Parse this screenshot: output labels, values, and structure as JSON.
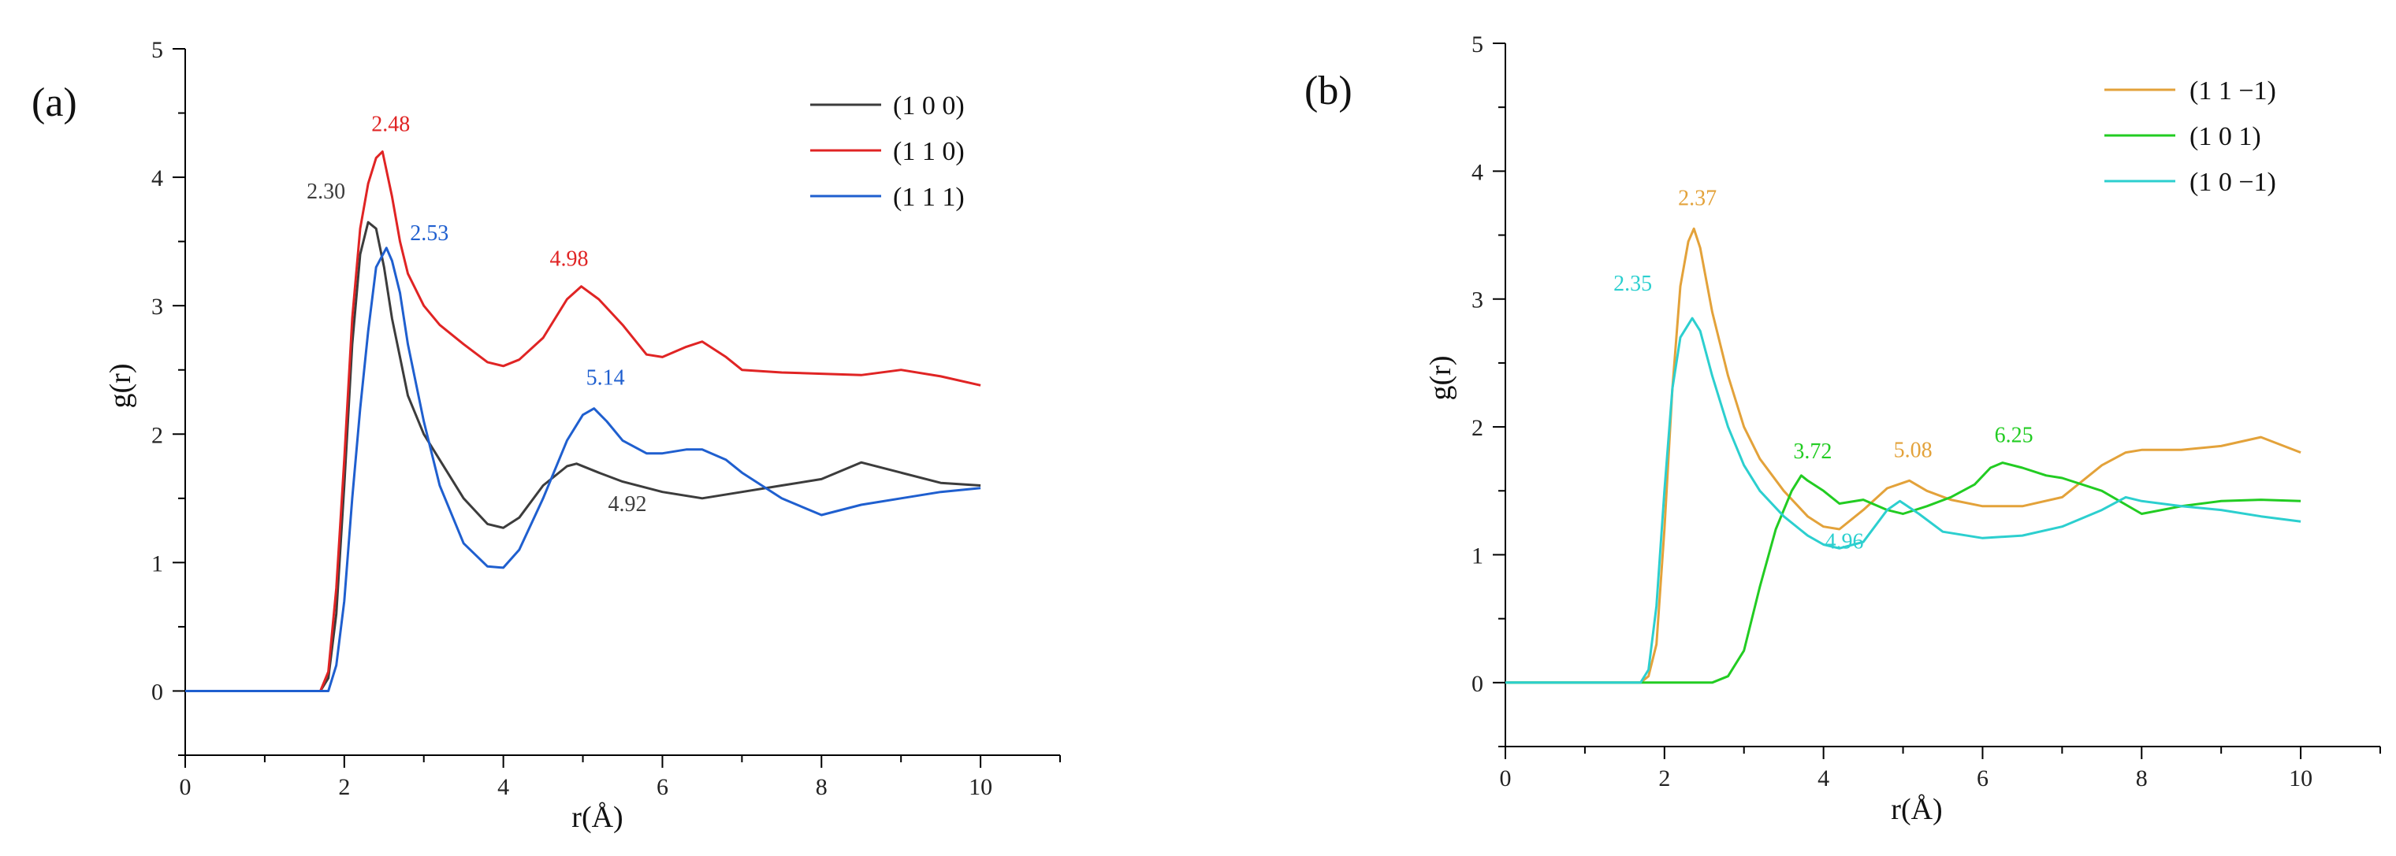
{
  "chart_data": [
    {
      "panel": "(a)",
      "type": "line",
      "xlabel": "r(Å)",
      "ylabel": "g(r)",
      "xlim": [
        0,
        11
      ],
      "ylim": [
        -0.5,
        5
      ],
      "xticks": [
        0,
        2,
        4,
        6,
        8,
        10
      ],
      "yticks": [
        0,
        1,
        2,
        3,
        4,
        5
      ],
      "legend_position": "top-right",
      "series": [
        {
          "name": "(1 0 0)",
          "color": "#3c3c3c",
          "x": [
            0,
            1.7,
            1.8,
            1.9,
            2.0,
            2.1,
            2.2,
            2.3,
            2.4,
            2.5,
            2.6,
            2.7,
            2.8,
            3.0,
            3.2,
            3.5,
            3.8,
            4.0,
            4.2,
            4.5,
            4.8,
            4.92,
            5.2,
            5.5,
            6.0,
            6.5,
            7.0,
            7.5,
            8.0,
            8.5,
            9.0,
            9.5,
            10.0
          ],
          "y": [
            0,
            0,
            0.1,
            0.6,
            1.6,
            2.7,
            3.4,
            3.65,
            3.6,
            3.3,
            2.9,
            2.6,
            2.3,
            2.0,
            1.8,
            1.5,
            1.3,
            1.27,
            1.35,
            1.6,
            1.75,
            1.77,
            1.7,
            1.63,
            1.55,
            1.5,
            1.55,
            1.6,
            1.65,
            1.78,
            1.7,
            1.62,
            1.6
          ]
        },
        {
          "name": "(1 1 0)",
          "color": "#e02424",
          "x": [
            0,
            1.7,
            1.8,
            1.9,
            2.0,
            2.1,
            2.2,
            2.3,
            2.4,
            2.48,
            2.6,
            2.7,
            2.8,
            3.0,
            3.2,
            3.5,
            3.8,
            4.0,
            4.2,
            4.5,
            4.8,
            4.98,
            5.2,
            5.5,
            5.8,
            6.0,
            6.3,
            6.5,
            6.8,
            7.0,
            7.5,
            8.0,
            8.5,
            9.0,
            9.5,
            10.0
          ],
          "y": [
            0,
            0,
            0.15,
            0.8,
            1.8,
            2.9,
            3.6,
            3.95,
            4.15,
            4.2,
            3.85,
            3.5,
            3.25,
            3.0,
            2.85,
            2.7,
            2.56,
            2.53,
            2.58,
            2.75,
            3.05,
            3.15,
            3.05,
            2.85,
            2.62,
            2.6,
            2.68,
            2.72,
            2.6,
            2.5,
            2.48,
            2.47,
            2.46,
            2.5,
            2.45,
            2.38
          ]
        },
        {
          "name": "(1 1 1)",
          "color": "#1f5fcf",
          "x": [
            0,
            1.8,
            1.9,
            2.0,
            2.1,
            2.2,
            2.3,
            2.4,
            2.53,
            2.6,
            2.7,
            2.8,
            3.0,
            3.2,
            3.5,
            3.8,
            4.0,
            4.2,
            4.5,
            4.8,
            5.0,
            5.14,
            5.3,
            5.5,
            5.8,
            6.0,
            6.3,
            6.5,
            6.8,
            7.0,
            7.5,
            8.0,
            8.5,
            9.0,
            9.5,
            10.0
          ],
          "y": [
            0,
            0,
            0.2,
            0.7,
            1.5,
            2.2,
            2.8,
            3.3,
            3.45,
            3.35,
            3.1,
            2.7,
            2.1,
            1.6,
            1.15,
            0.97,
            0.96,
            1.1,
            1.5,
            1.95,
            2.15,
            2.2,
            2.1,
            1.95,
            1.85,
            1.85,
            1.88,
            1.88,
            1.8,
            1.7,
            1.5,
            1.37,
            1.45,
            1.5,
            1.55,
            1.58
          ]
        }
      ],
      "annotations": [
        {
          "text": "2.30",
          "x": 2.3,
          "y": 3.65,
          "color": "#3c3c3c"
        },
        {
          "text": "2.48",
          "x": 2.48,
          "y": 4.2,
          "color": "#e02424"
        },
        {
          "text": "2.53",
          "x": 2.53,
          "y": 3.45,
          "color": "#1f5fcf"
        },
        {
          "text": "4.98",
          "x": 4.98,
          "y": 3.15,
          "color": "#e02424"
        },
        {
          "text": "5.14",
          "x": 5.14,
          "y": 2.2,
          "color": "#1f5fcf"
        },
        {
          "text": "4.92",
          "x": 4.92,
          "y": 1.77,
          "color": "#3c3c3c"
        }
      ]
    },
    {
      "panel": "(b)",
      "type": "line",
      "xlabel": "r(Å)",
      "ylabel": "g(r)",
      "xlim": [
        0,
        11
      ],
      "ylim": [
        -0.5,
        5
      ],
      "xticks": [
        0,
        2,
        4,
        6,
        8,
        10
      ],
      "yticks": [
        0,
        1,
        2,
        3,
        4,
        5
      ],
      "legend_position": "top-right",
      "series": [
        {
          "name": "(1 1 −1)",
          "color": "#e3a23a",
          "x": [
            0,
            1.7,
            1.8,
            1.9,
            2.0,
            2.1,
            2.2,
            2.3,
            2.37,
            2.45,
            2.6,
            2.8,
            3.0,
            3.2,
            3.5,
            3.8,
            4.0,
            4.2,
            4.5,
            4.8,
            5.08,
            5.3,
            5.6,
            6.0,
            6.5,
            7.0,
            7.5,
            7.8,
            8.0,
            8.5,
            9.0,
            9.5,
            10.0
          ],
          "y": [
            0,
            0,
            0.05,
            0.3,
            1.2,
            2.3,
            3.1,
            3.45,
            3.55,
            3.4,
            2.9,
            2.4,
            2.0,
            1.75,
            1.5,
            1.3,
            1.22,
            1.2,
            1.35,
            1.52,
            1.58,
            1.5,
            1.43,
            1.38,
            1.38,
            1.45,
            1.7,
            1.8,
            1.82,
            1.82,
            1.85,
            1.92,
            1.8
          ]
        },
        {
          "name": "(1 0 1)",
          "color": "#22cc22",
          "x": [
            0,
            2.6,
            2.8,
            3.0,
            3.2,
            3.4,
            3.6,
            3.72,
            3.8,
            4.0,
            4.2,
            4.5,
            4.8,
            5.0,
            5.3,
            5.6,
            5.9,
            6.1,
            6.25,
            6.5,
            6.8,
            7.0,
            7.5,
            8.0,
            8.5,
            9.0,
            9.5,
            10.0
          ],
          "y": [
            0,
            0,
            0.05,
            0.25,
            0.75,
            1.2,
            1.5,
            1.62,
            1.58,
            1.5,
            1.4,
            1.43,
            1.35,
            1.32,
            1.38,
            1.45,
            1.55,
            1.68,
            1.72,
            1.68,
            1.62,
            1.6,
            1.5,
            1.32,
            1.38,
            1.42,
            1.43,
            1.42
          ]
        },
        {
          "name": "(1 0 −1)",
          "color": "#2ccfcf",
          "x": [
            0,
            1.7,
            1.8,
            1.9,
            2.0,
            2.1,
            2.2,
            2.35,
            2.45,
            2.6,
            2.8,
            3.0,
            3.2,
            3.5,
            3.8,
            4.0,
            4.2,
            4.5,
            4.8,
            4.96,
            5.2,
            5.5,
            6.0,
            6.5,
            7.0,
            7.5,
            7.8,
            8.0,
            8.5,
            9.0,
            9.5,
            10.0
          ],
          "y": [
            0,
            0,
            0.1,
            0.6,
            1.5,
            2.3,
            2.7,
            2.85,
            2.75,
            2.4,
            2.0,
            1.7,
            1.5,
            1.3,
            1.15,
            1.08,
            1.05,
            1.1,
            1.35,
            1.42,
            1.32,
            1.18,
            1.13,
            1.15,
            1.22,
            1.35,
            1.45,
            1.42,
            1.38,
            1.35,
            1.3,
            1.26
          ]
        }
      ],
      "annotations": [
        {
          "text": "2.37",
          "x": 2.37,
          "y": 3.55,
          "color": "#e3a23a"
        },
        {
          "text": "2.35",
          "x": 2.35,
          "y": 2.85,
          "color": "#2ccfcf"
        },
        {
          "text": "3.72",
          "x": 3.72,
          "y": 1.62,
          "color": "#22cc22"
        },
        {
          "text": "5.08",
          "x": 5.08,
          "y": 1.58,
          "color": "#e3a23a"
        },
        {
          "text": "6.25",
          "x": 6.25,
          "y": 1.72,
          "color": "#22cc22"
        },
        {
          "text": "4.96",
          "x": 4.96,
          "y": 1.42,
          "color": "#2ccfcf"
        }
      ]
    }
  ]
}
